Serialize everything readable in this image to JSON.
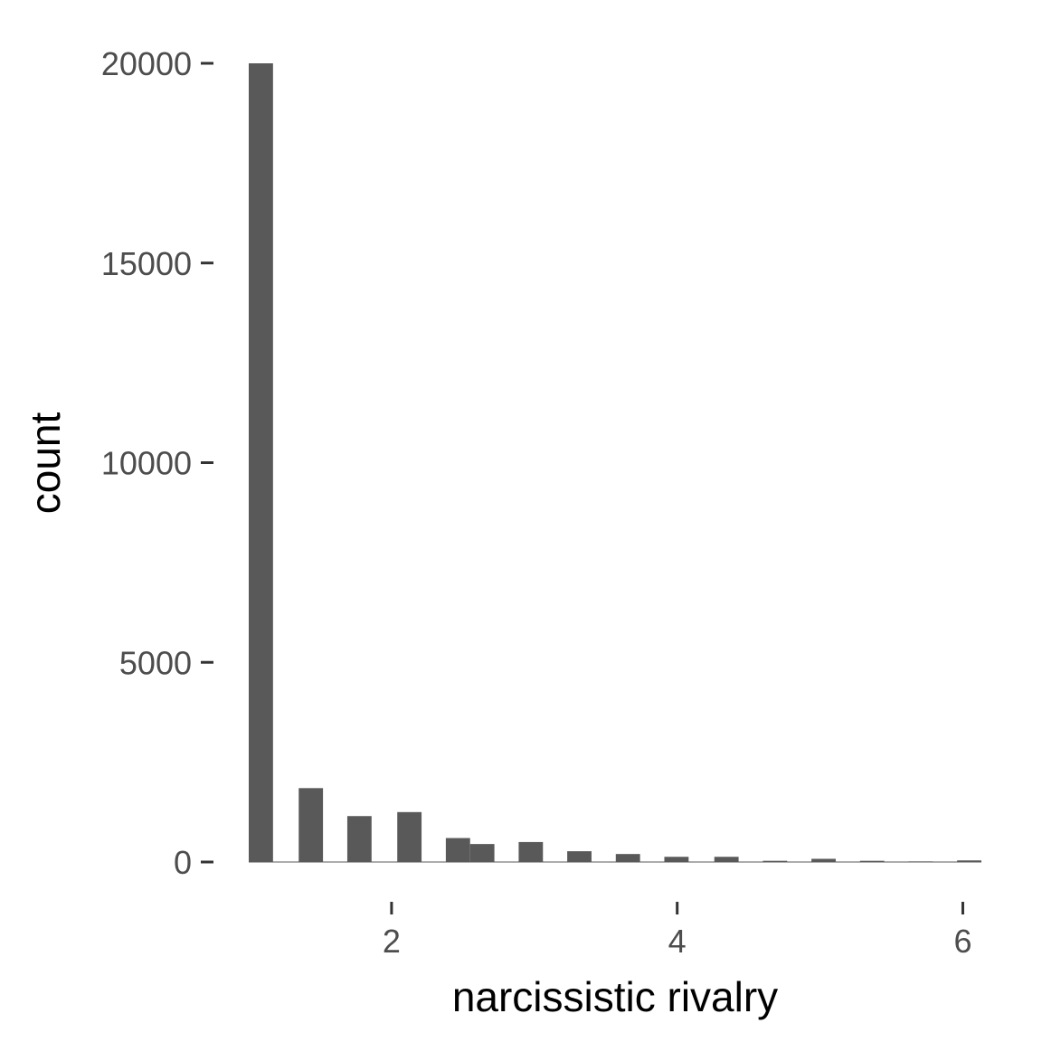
{
  "chart_data": {
    "type": "bar",
    "title": "",
    "xlabel": "narcissistic rivalry",
    "ylabel": "count",
    "xlim": [
      1.0,
      6.13
    ],
    "ylim": [
      0,
      20000
    ],
    "grid": false,
    "bar_color": "#595959",
    "bin_width": 0.17,
    "x_ticks": [
      {
        "value": 2,
        "label": "2"
      },
      {
        "value": 4,
        "label": "4"
      },
      {
        "value": 6,
        "label": "6"
      }
    ],
    "y_ticks": [
      {
        "value": 0,
        "label": "0"
      },
      {
        "value": 5000,
        "label": "5000"
      },
      {
        "value": 10000,
        "label": "10000"
      },
      {
        "value": 15000,
        "label": "15000"
      },
      {
        "value": 20000,
        "label": "20000"
      }
    ],
    "bars": [
      {
        "x": 1.0,
        "value": 20000
      },
      {
        "x": 1.35,
        "value": 1850
      },
      {
        "x": 1.69,
        "value": 1150
      },
      {
        "x": 2.04,
        "value": 1250
      },
      {
        "x": 2.38,
        "value": 600
      },
      {
        "x": 2.55,
        "value": 450
      },
      {
        "x": 2.89,
        "value": 500
      },
      {
        "x": 3.23,
        "value": 270
      },
      {
        "x": 3.57,
        "value": 200
      },
      {
        "x": 3.91,
        "value": 130
      },
      {
        "x": 4.26,
        "value": 130
      },
      {
        "x": 4.6,
        "value": 30
      },
      {
        "x": 4.94,
        "value": 80
      },
      {
        "x": 5.28,
        "value": 30
      },
      {
        "x": 5.62,
        "value": 15
      },
      {
        "x": 5.96,
        "value": 40
      }
    ]
  }
}
